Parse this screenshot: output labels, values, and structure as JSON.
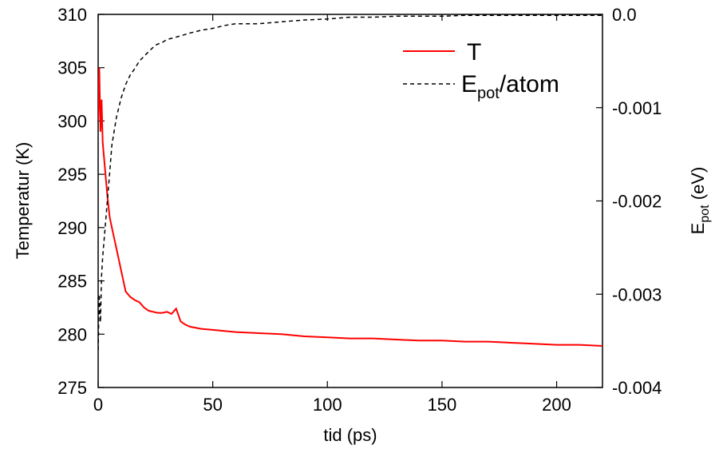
{
  "chart_data": {
    "type": "line",
    "xlabel": "tid (ps)",
    "ylabel_left": "Temperatur (K)",
    "ylabel_right": {
      "main": "E",
      "sub": "pot",
      "rest": " (eV)"
    },
    "xlim": [
      0,
      220
    ],
    "ylim_left": [
      275,
      310
    ],
    "ylim_right": [
      -0.004,
      0.0
    ],
    "xticks": [
      0,
      50,
      100,
      150,
      200
    ],
    "yticks_left": [
      275,
      280,
      285,
      290,
      295,
      300,
      305,
      310
    ],
    "yticks_right": [
      {
        "value": -0.004,
        "label": "-0.004"
      },
      {
        "value": -0.003,
        "label": "-0.003"
      },
      {
        "value": -0.002,
        "label": "-0.002"
      },
      {
        "value": -0.001,
        "label": "-0.001"
      },
      {
        "value": 0.0,
        "label": "0.0"
      }
    ],
    "legend_position": "top-right",
    "series": [
      {
        "name": "T",
        "axis": "left",
        "color": "#ff0000",
        "style": "solid",
        "x": [
          0,
          0.5,
          1,
          1.5,
          2,
          3,
          4,
          5,
          6,
          7,
          8,
          9,
          10,
          12,
          14,
          16,
          18,
          20,
          22,
          24,
          26,
          28,
          30,
          32,
          34,
          36,
          38,
          40,
          45,
          50,
          55,
          60,
          70,
          80,
          90,
          100,
          110,
          120,
          130,
          140,
          150,
          160,
          170,
          180,
          190,
          200,
          210,
          220
        ],
        "y": [
          300,
          305,
          299,
          302,
          298,
          295.5,
          293,
          291,
          290,
          289,
          288,
          287,
          286,
          284,
          283.5,
          283.2,
          283,
          282.5,
          282.2,
          282.1,
          282,
          282,
          282.1,
          281.9,
          282.4,
          281.2,
          280.9,
          280.7,
          280.5,
          280.4,
          280.3,
          280.2,
          280.1,
          280,
          279.8,
          279.7,
          279.6,
          279.6,
          279.5,
          279.4,
          279.4,
          279.3,
          279.3,
          279.2,
          279.1,
          279,
          279,
          278.9
        ]
      },
      {
        "name": {
          "main": "E",
          "sub": "pot",
          "rest": "/atom"
        },
        "axis": "right",
        "color": "#000000",
        "style": "dashed",
        "x": [
          0,
          0.5,
          1,
          1.5,
          2,
          3,
          4,
          5,
          6,
          7,
          8,
          10,
          12,
          14,
          16,
          18,
          20,
          22,
          25,
          28,
          30,
          33,
          36,
          40,
          45,
          50,
          55,
          60,
          70,
          80,
          90,
          100,
          110,
          120,
          130,
          140,
          150,
          160,
          170,
          180,
          190,
          200,
          210,
          220
        ],
        "y": [
          -0.0036,
          -0.003,
          -0.0033,
          -0.0028,
          -0.0026,
          -0.0023,
          -0.002,
          -0.0017,
          -0.0014,
          -0.00125,
          -0.0011,
          -0.0009,
          -0.00075,
          -0.00065,
          -0.00058,
          -0.0005,
          -0.00045,
          -0.0004,
          -0.00033,
          -0.0003,
          -0.00027,
          -0.00025,
          -0.00023,
          -0.0002,
          -0.00017,
          -0.00015,
          -0.00012,
          -0.0001,
          -0.0001,
          -8e-05,
          -6e-05,
          -5e-05,
          -3e-05,
          -3e-05,
          -2e-05,
          -2e-05,
          -2e-05,
          -1e-05,
          -1e-05,
          -1e-05,
          -1e-05,
          -1e-05,
          -1e-05,
          -1e-05
        ]
      }
    ]
  }
}
